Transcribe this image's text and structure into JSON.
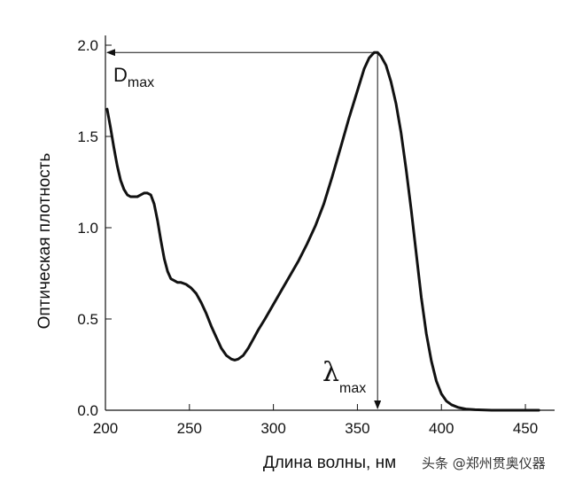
{
  "chart_data": {
    "type": "line",
    "xlabel": "Длина волны, нм",
    "ylabel": "Оптическая плотность",
    "xlim": [
      200,
      460
    ],
    "ylim": [
      0,
      2.0
    ],
    "x_ticks": [
      "200",
      "250",
      "300",
      "350",
      "400",
      "450"
    ],
    "y_ticks": [
      "0.0",
      "0.5",
      "1.0",
      "1.5",
      "2.0"
    ],
    "grid": false,
    "series": [
      {
        "color": "#111111",
        "points": [
          [
            201,
            1.65
          ],
          [
            203,
            1.55
          ],
          [
            205,
            1.44
          ],
          [
            207,
            1.34
          ],
          [
            209,
            1.26
          ],
          [
            211,
            1.21
          ],
          [
            213,
            1.18
          ],
          [
            215,
            1.17
          ],
          [
            217,
            1.17
          ],
          [
            219,
            1.17
          ],
          [
            221,
            1.18
          ],
          [
            223,
            1.19
          ],
          [
            225,
            1.19
          ],
          [
            227,
            1.18
          ],
          [
            229,
            1.13
          ],
          [
            231,
            1.04
          ],
          [
            233,
            0.93
          ],
          [
            235,
            0.83
          ],
          [
            237,
            0.76
          ],
          [
            239,
            0.72
          ],
          [
            241,
            0.71
          ],
          [
            243,
            0.7
          ],
          [
            245,
            0.7
          ],
          [
            248,
            0.69
          ],
          [
            251,
            0.67
          ],
          [
            254,
            0.64
          ],
          [
            257,
            0.59
          ],
          [
            260,
            0.53
          ],
          [
            263,
            0.46
          ],
          [
            266,
            0.4
          ],
          [
            269,
            0.34
          ],
          [
            272,
            0.3
          ],
          [
            275,
            0.28
          ],
          [
            277,
            0.275
          ],
          [
            279,
            0.28
          ],
          [
            282,
            0.3
          ],
          [
            285,
            0.34
          ],
          [
            288,
            0.39
          ],
          [
            291,
            0.44
          ],
          [
            295,
            0.5
          ],
          [
            300,
            0.58
          ],
          [
            305,
            0.66
          ],
          [
            310,
            0.74
          ],
          [
            315,
            0.82
          ],
          [
            320,
            0.91
          ],
          [
            325,
            1.01
          ],
          [
            330,
            1.13
          ],
          [
            335,
            1.28
          ],
          [
            340,
            1.44
          ],
          [
            345,
            1.6
          ],
          [
            350,
            1.75
          ],
          [
            354,
            1.87
          ],
          [
            357,
            1.93
          ],
          [
            360,
            1.96
          ],
          [
            362,
            1.96
          ],
          [
            364,
            1.94
          ],
          [
            367,
            1.89
          ],
          [
            370,
            1.8
          ],
          [
            373,
            1.68
          ],
          [
            376,
            1.52
          ],
          [
            379,
            1.32
          ],
          [
            382,
            1.1
          ],
          [
            385,
            0.86
          ],
          [
            388,
            0.62
          ],
          [
            391,
            0.42
          ],
          [
            394,
            0.27
          ],
          [
            397,
            0.16
          ],
          [
            400,
            0.09
          ],
          [
            403,
            0.05
          ],
          [
            406,
            0.03
          ],
          [
            410,
            0.015
          ],
          [
            415,
            0.006
          ],
          [
            420,
            0.003
          ],
          [
            430,
            0.0
          ],
          [
            445,
            0.0
          ],
          [
            458,
            0.0
          ]
        ]
      }
    ],
    "annotations": {
      "dmax_main": "D",
      "dmax_sub": "max",
      "lambda_main": "λ",
      "lambda_sub": "max",
      "peak": [
        362,
        1.96
      ]
    }
  },
  "watermark": "头条 @郑州贯奥仪器"
}
